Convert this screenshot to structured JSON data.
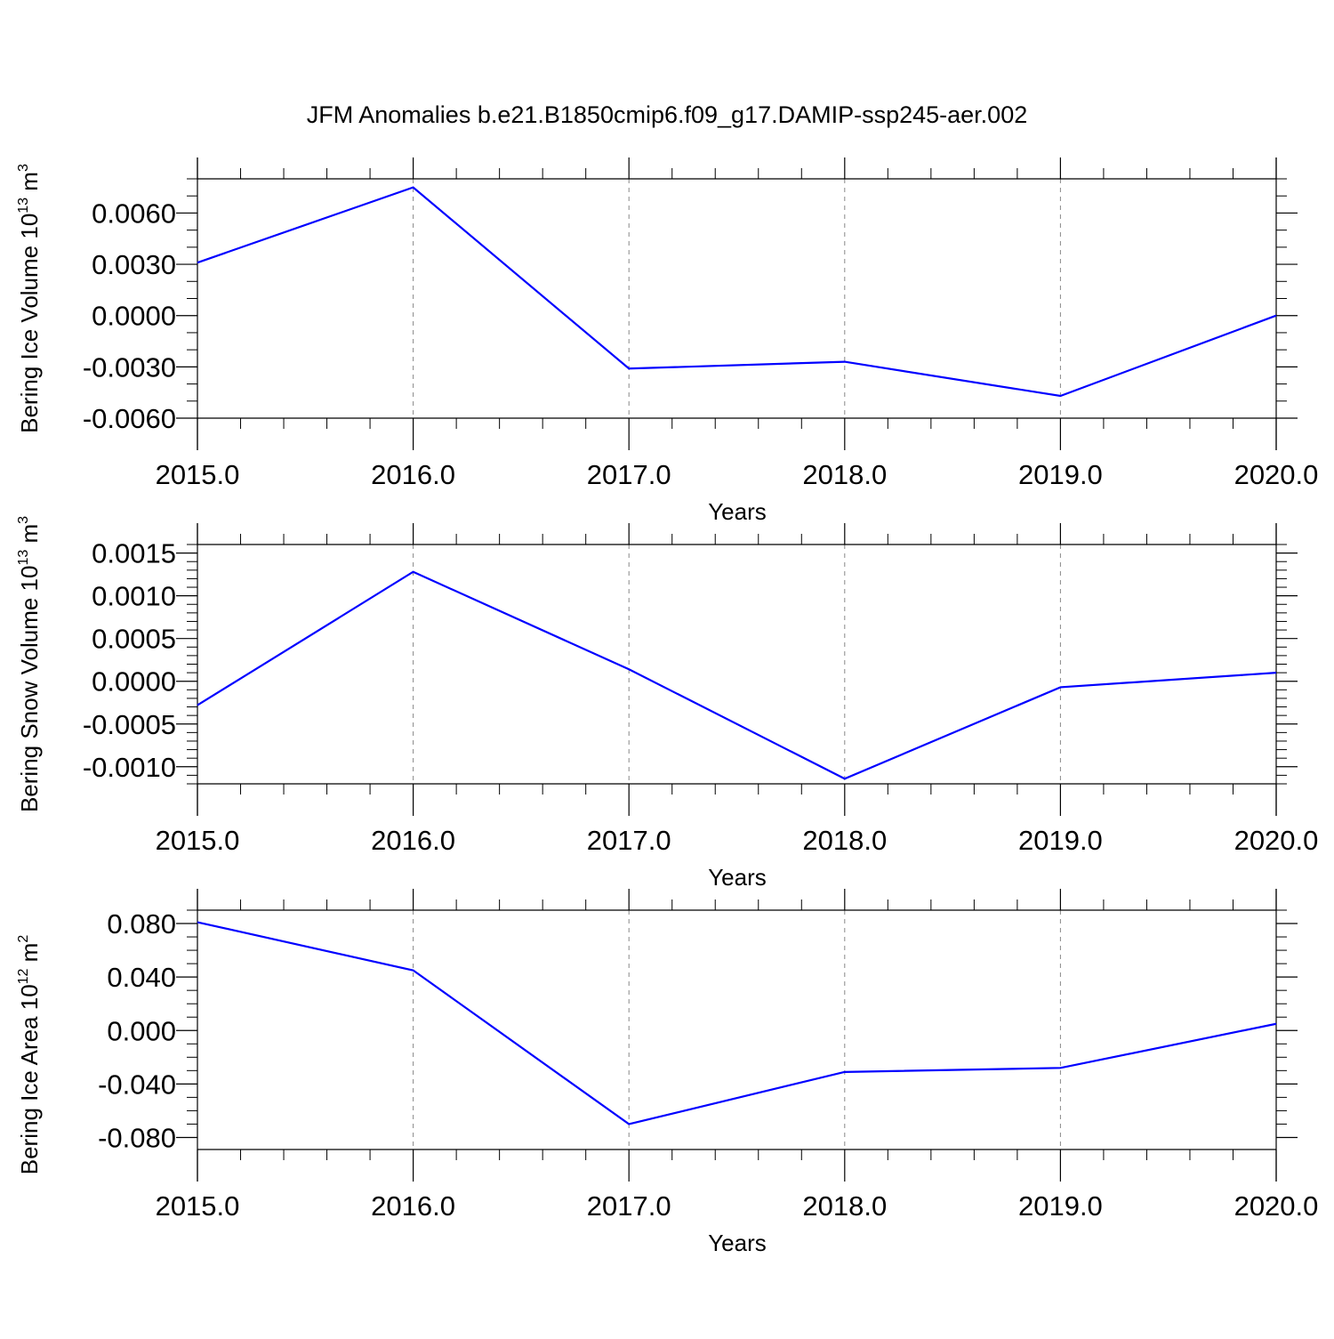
{
  "figure": {
    "title": "JFM Anomalies b.e21.B1850cmip6.f09_g17.DAMIP-ssp245-aer.002"
  },
  "colors": {
    "line": "#0000ff",
    "axes": "#000000",
    "grid": "#888888",
    "background": "#ffffff"
  },
  "chart_data": [
    {
      "type": "line",
      "xlabel": "Years",
      "ylabel": "Bering Ice Volume",
      "ylabel_unit_base": "10",
      "ylabel_unit_exp": "13",
      "ylabel_unit_tail": " m",
      "ylabel_unit_tail_exp": "3",
      "x": [
        2015,
        2016,
        2017,
        2018,
        2019,
        2020
      ],
      "series": [
        {
          "values": [
            0.0031,
            0.0075,
            -0.0031,
            -0.0027,
            -0.0047,
            0.0
          ]
        }
      ],
      "xlim": [
        2015,
        2020
      ],
      "ylim": [
        -0.006,
        0.008
      ],
      "xticks": [
        2015,
        2016,
        2017,
        2018,
        2019,
        2020
      ],
      "xtick_labels": [
        "2015.0",
        "2016.0",
        "2017.0",
        "2018.0",
        "2019.0",
        "2020.0"
      ],
      "yticks": [
        -0.006,
        -0.003,
        0.0,
        0.003,
        0.006
      ],
      "ytick_labels": [
        "-0.0060",
        "-0.0030",
        "0.0000",
        "0.0030",
        "0.0060"
      ],
      "yminor_step": 0.001,
      "vertical_grid": "dashed"
    },
    {
      "type": "line",
      "xlabel": "Years",
      "ylabel": "Bering Snow Volume",
      "ylabel_unit_base": "10",
      "ylabel_unit_exp": "13",
      "ylabel_unit_tail": " m",
      "ylabel_unit_tail_exp": "3",
      "x": [
        2015,
        2016,
        2017,
        2018,
        2019,
        2020
      ],
      "series": [
        {
          "values": [
            -0.00028,
            0.00128,
            0.00014,
            -0.00114,
            -7e-05,
            0.0001
          ]
        }
      ],
      "xlim": [
        2015,
        2020
      ],
      "ylim": [
        -0.0012,
        0.0016
      ],
      "xticks": [
        2015,
        2016,
        2017,
        2018,
        2019,
        2020
      ],
      "xtick_labels": [
        "2015.0",
        "2016.0",
        "2017.0",
        "2018.0",
        "2019.0",
        "2020.0"
      ],
      "yticks": [
        -0.001,
        -0.0005,
        0.0,
        0.0005,
        0.001,
        0.0015
      ],
      "ytick_labels": [
        "-0.0010",
        "-0.0005",
        "0.0000",
        "0.0005",
        "0.0010",
        "0.0015"
      ],
      "yminor_step": 0.0001,
      "vertical_grid": "dashed"
    },
    {
      "type": "line",
      "xlabel": "Years",
      "ylabel": "Bering Ice Area",
      "ylabel_unit_base": "10",
      "ylabel_unit_exp": "12",
      "ylabel_unit_tail": " m",
      "ylabel_unit_tail_exp": "2",
      "x": [
        2015,
        2016,
        2017,
        2018,
        2019,
        2020
      ],
      "series": [
        {
          "values": [
            0.081,
            0.045,
            -0.07,
            -0.031,
            -0.028,
            0.005
          ]
        }
      ],
      "xlim": [
        2015,
        2020
      ],
      "ylim": [
        -0.089,
        0.09
      ],
      "xticks": [
        2015,
        2016,
        2017,
        2018,
        2019,
        2020
      ],
      "xtick_labels": [
        "2015.0",
        "2016.0",
        "2017.0",
        "2018.0",
        "2019.0",
        "2020.0"
      ],
      "yticks": [
        -0.08,
        -0.04,
        0.0,
        0.04,
        0.08
      ],
      "ytick_labels": [
        "-0.080",
        "-0.040",
        "0.000",
        "0.040",
        "0.080"
      ],
      "yminor_step": 0.01,
      "vertical_grid": "dashed"
    }
  ]
}
